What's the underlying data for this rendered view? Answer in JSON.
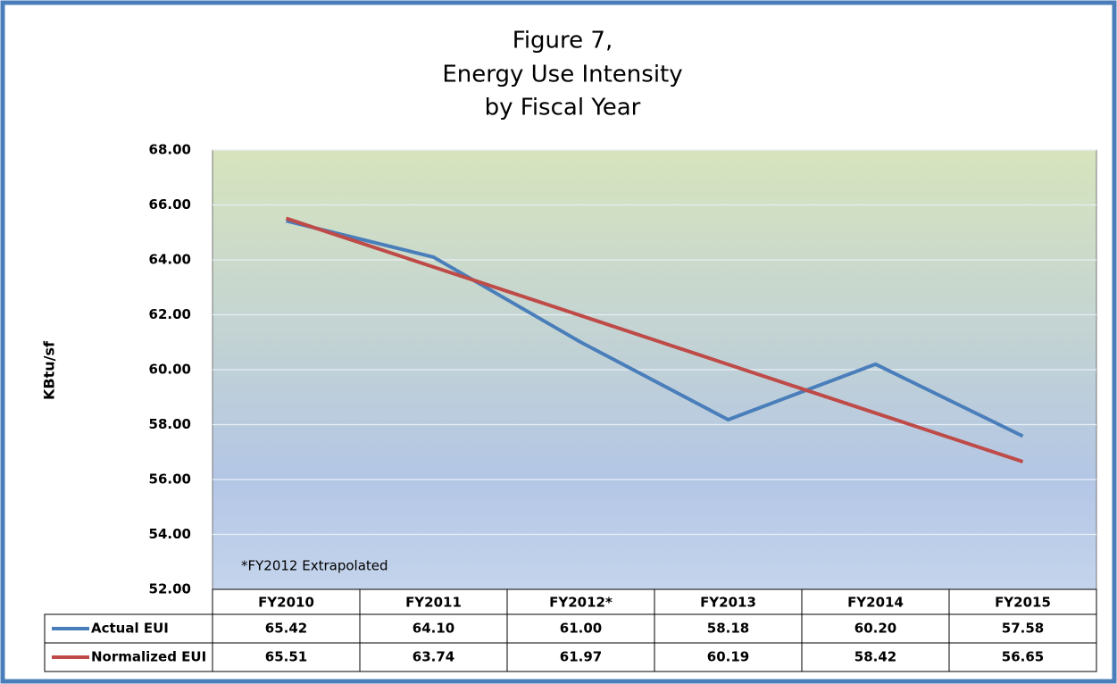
{
  "chart_data": {
    "type": "line",
    "title": [
      "Figure 7,",
      "Energy Use Intensity",
      "by Fiscal Year"
    ],
    "y_label": "KBtu/sf",
    "annotation": "*FY2012 Extrapolated",
    "categories": [
      "FY2010",
      "FY2011",
      "FY2012*",
      "FY2013",
      "FY2014",
      "FY2015"
    ],
    "series": [
      {
        "name": "Actual EUI",
        "color": "#4a7ebb",
        "values": [
          65.42,
          64.1,
          61,
          58.18,
          60.2,
          57.58
        ],
        "value_labels": [
          "65.42",
          "64.10",
          "61.00",
          "58.18",
          "60.20",
          "57.58"
        ]
      },
      {
        "name": "Normalized EUI",
        "color": "#be4b48",
        "values": [
          65.51,
          63.74,
          61.97,
          60.19,
          58.42,
          56.65
        ],
        "value_labels": [
          "65.51",
          "63.74",
          "61.97",
          "60.19",
          "58.42",
          "56.65"
        ]
      }
    ],
    "ylim": [
      52,
      68
    ],
    "yticks": [
      {
        "value": 52,
        "label": "52.00"
      },
      {
        "value": 54,
        "label": "54.00"
      },
      {
        "value": 56,
        "label": "56.00"
      },
      {
        "value": 58,
        "label": "58.00"
      },
      {
        "value": 60,
        "label": "60.00"
      },
      {
        "value": 62,
        "label": "62.00"
      },
      {
        "value": 64,
        "label": "64.00"
      },
      {
        "value": 66,
        "label": "66.00"
      },
      {
        "value": 68,
        "label": "68.00"
      }
    ],
    "grid": true
  }
}
